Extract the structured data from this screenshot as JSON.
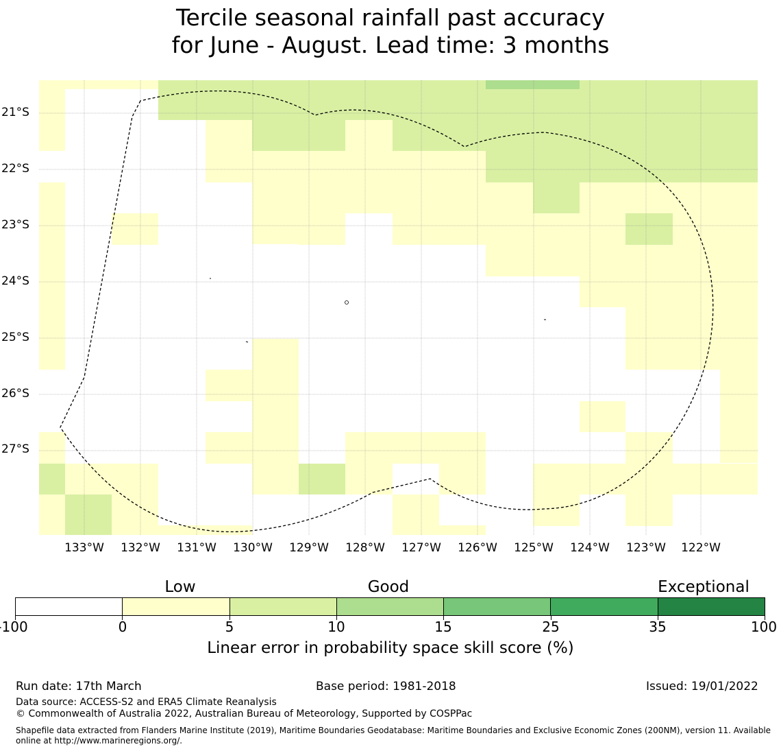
{
  "title": {
    "line1": "Tercile seasonal rainfall past accuracy",
    "line2": "for June - August. Lead time: 3 months"
  },
  "map": {
    "lat_labels": [
      "21°S",
      "22°S",
      "23°S",
      "24°S",
      "25°S",
      "26°S",
      "27°S"
    ],
    "lon_labels": [
      "133°W",
      "132°W",
      "131°W",
      "130°W",
      "129°W",
      "128°W",
      "127°W",
      "126°W",
      "125°W",
      "124°W",
      "123°W",
      "122°W"
    ],
    "colors": {
      "0_5": "#ffffcc",
      "5_10": "#d9f0a3",
      "10_15": "#addd8e",
      "15_25": "#78c679",
      "25_35": "#41ab5d",
      "35_100": "#238443",
      "grid": "#888888",
      "boundary": "#000000"
    }
  },
  "colorbar": {
    "categories": [
      "Low",
      "Good",
      "Exceptional"
    ],
    "ticks": [
      "-100",
      "0",
      "5",
      "10",
      "15",
      "25",
      "35",
      "100"
    ],
    "colors": [
      "#ffffff",
      "#ffffcc",
      "#d9f0a3",
      "#addd8e",
      "#78c679",
      "#41ab5d",
      "#238443"
    ],
    "label": "Linear error in probability space skill score (%)"
  },
  "footer": {
    "run_date": "Run date: 17th March",
    "base_period": "Base period: 1981-2018",
    "issued": "Issued: 19/01/2022",
    "data_source": "Data source: ACCESS-S2 and ERA5 Climate Reanalysis",
    "copyright": "© Commonwealth of Australia 2022, Australian Bureau of Meteorology, Supported by COSPPac",
    "shapefile": "Shapefile data extracted from Flanders Marine Institute (2019), Maritime Boundaries Geodatabase: Maritime Boundaries and Exclusive Economic Zones (200NM), version 11. Available online at http://www.marineregions.org/."
  }
}
